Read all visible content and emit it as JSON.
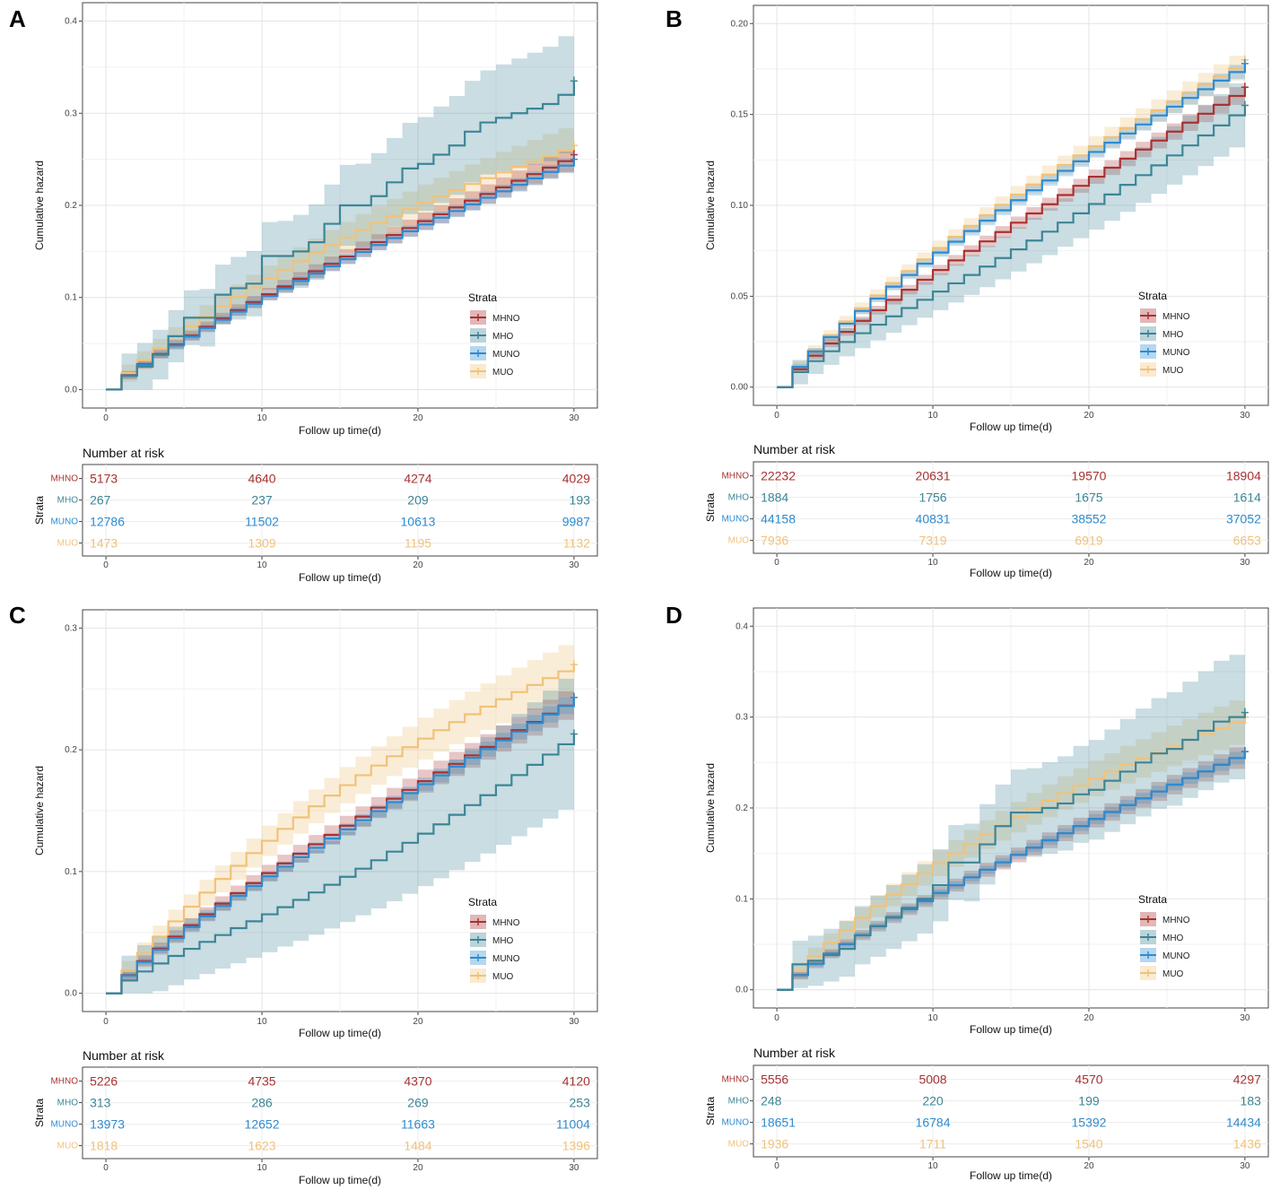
{
  "figure": {
    "colors": {
      "MHNO": "#a83232",
      "MHO": "#3d8596",
      "MUNO": "#2e8bd0",
      "MUO": "#f0c27a"
    },
    "strata_order": [
      "MHNO",
      "MHO",
      "MUNO",
      "MUO"
    ]
  },
  "chart_data": [
    {
      "panel": "A",
      "type": "line",
      "ylabel": "Cumulative hazard",
      "xlabel": "Follow up time(d)",
      "xlim": [
        -1.5,
        31.5
      ],
      "ylim": [
        -0.02,
        0.42
      ],
      "xticks": [
        "0",
        "10",
        "20",
        "30"
      ],
      "yticks": [
        "0.0",
        "0.1",
        "0.2",
        "0.3",
        "0.4"
      ],
      "ytick_values": [
        0,
        0.1,
        0.2,
        0.3,
        0.4
      ],
      "legend": {
        "title": "Strata",
        "entries": [
          "MHNO",
          "MHO",
          "MUNO",
          "MUO"
        ]
      },
      "series": [
        {
          "name": "MHNO",
          "final": 0.255,
          "ci": 0.012,
          "dip": 0.0
        },
        {
          "name": "MHO",
          "final": 0.335,
          "ci": 0.065,
          "dip": 0.01,
          "steps": [
            [
              1,
              0.015
            ],
            [
              2,
              0.025
            ],
            [
              3,
              0.038
            ],
            [
              4,
              0.058
            ],
            [
              5,
              0.078
            ],
            [
              6,
              0.078
            ],
            [
              7,
              0.103
            ],
            [
              8,
              0.11
            ],
            [
              9,
              0.115
            ],
            [
              10,
              0.145
            ],
            [
              11,
              0.145
            ],
            [
              12,
              0.15
            ],
            [
              13,
              0.16
            ],
            [
              14,
              0.18
            ],
            [
              15,
              0.2
            ],
            [
              16,
              0.2
            ],
            [
              17,
              0.21
            ],
            [
              18,
              0.225
            ],
            [
              19,
              0.24
            ],
            [
              20,
              0.245
            ],
            [
              21,
              0.255
            ],
            [
              22,
              0.265
            ],
            [
              23,
              0.28
            ],
            [
              24,
              0.29
            ],
            [
              25,
              0.295
            ],
            [
              26,
              0.3
            ],
            [
              27,
              0.305
            ],
            [
              28,
              0.31
            ],
            [
              29,
              0.32
            ],
            [
              30,
              0.335
            ]
          ]
        },
        {
          "name": "MUNO",
          "final": 0.25,
          "ci": 0.008,
          "dip": 0.0
        },
        {
          "name": "MUO",
          "final": 0.265,
          "ci": 0.025,
          "dip": -0.015
        }
      ],
      "risk_table": {
        "title": "Number at risk",
        "ylabel": "Strata",
        "xlabel": "Follow up time(d)",
        "times": [
          "0",
          "10",
          "20",
          "30"
        ],
        "rows": [
          {
            "stratum": "MHNO",
            "values": [
              "5173",
              "4640",
              "4274",
              "4029"
            ]
          },
          {
            "stratum": "MHO",
            "values": [
              "267",
              "237",
              "209",
              "193"
            ]
          },
          {
            "stratum": "MUNO",
            "values": [
              "12786",
              "11502",
              "10613",
              "9987"
            ]
          },
          {
            "stratum": "MUO",
            "values": [
              "1473",
              "1309",
              "1195",
              "1132"
            ]
          }
        ]
      }
    },
    {
      "panel": "B",
      "type": "line",
      "ylabel": "Cumulative hazard",
      "xlabel": "Follow up time(d)",
      "xlim": [
        -1.5,
        31.5
      ],
      "ylim": [
        -0.01,
        0.21
      ],
      "xticks": [
        "0",
        "10",
        "20",
        "30"
      ],
      "yticks": [
        "0.00",
        "0.05",
        "0.10",
        "0.15",
        "0.20"
      ],
      "ytick_values": [
        0,
        0.05,
        0.1,
        0.15,
        0.2
      ],
      "legend": {
        "title": "Strata",
        "entries": [
          "MHNO",
          "MHO",
          "MUNO",
          "MUO"
        ]
      },
      "series": [
        {
          "name": "MHNO",
          "final": 0.165,
          "ci": 0.005,
          "dip": 0.003
        },
        {
          "name": "MHO",
          "final": 0.155,
          "ci": 0.018,
          "dip": 0.012
        },
        {
          "name": "MUNO",
          "final": 0.178,
          "ci": 0.004,
          "dip": -0.002
        },
        {
          "name": "MUO",
          "final": 0.18,
          "ci": 0.007,
          "dip": -0.004
        }
      ],
      "risk_table": {
        "title": "Number at risk",
        "ylabel": "Strata",
        "xlabel": "Follow up time(d)",
        "times": [
          "0",
          "10",
          "20",
          "30"
        ],
        "rows": [
          {
            "stratum": "MHNO",
            "values": [
              "22232",
              "20631",
              "19570",
              "18904"
            ]
          },
          {
            "stratum": "MHO",
            "values": [
              "1884",
              "1756",
              "1675",
              "1614"
            ]
          },
          {
            "stratum": "MUNO",
            "values": [
              "44158",
              "40831",
              "38552",
              "37052"
            ]
          },
          {
            "stratum": "MUO",
            "values": [
              "7936",
              "7319",
              "6919",
              "6653"
            ]
          }
        ]
      }
    },
    {
      "panel": "C",
      "type": "line",
      "ylabel": "Cumulative hazard",
      "xlabel": "Follow up time(d)",
      "xlim": [
        -1.5,
        31.5
      ],
      "ylim": [
        -0.015,
        0.315
      ],
      "xticks": [
        "0",
        "10",
        "20",
        "30"
      ],
      "yticks": [
        "0.0",
        "0.1",
        "0.2",
        "0.3"
      ],
      "ytick_values": [
        0,
        0.1,
        0.2,
        0.3
      ],
      "legend": {
        "title": "Strata",
        "entries": [
          "MHNO",
          "MHO",
          "MUNO",
          "MUO"
        ]
      },
      "series": [
        {
          "name": "MHNO",
          "final": 0.243,
          "ci": 0.012,
          "dip": 0.0
        },
        {
          "name": "MHO",
          "final": 0.213,
          "ci": 0.055,
          "dip": 0.025
        },
        {
          "name": "MUNO",
          "final": 0.243,
          "ci": 0.007,
          "dip": 0.003
        },
        {
          "name": "MUO",
          "final": 0.27,
          "ci": 0.022,
          "dip": -0.018
        }
      ],
      "risk_table": {
        "title": "Number at risk",
        "ylabel": "Strata",
        "xlabel": "Follow up time(d)",
        "times": [
          "0",
          "10",
          "20",
          "30"
        ],
        "rows": [
          {
            "stratum": "MHNO",
            "values": [
              "5226",
              "4735",
              "4370",
              "4120"
            ]
          },
          {
            "stratum": "MHO",
            "values": [
              "313",
              "286",
              "269",
              "253"
            ]
          },
          {
            "stratum": "MUNO",
            "values": [
              "13973",
              "12652",
              "11663",
              "11004"
            ]
          },
          {
            "stratum": "MUO",
            "values": [
              "1818",
              "1623",
              "1484",
              "1396"
            ]
          }
        ]
      }
    },
    {
      "panel": "D",
      "type": "line",
      "ylabel": "Cumulative hazard",
      "xlabel": "Follow up time(d)",
      "xlim": [
        -1.5,
        31.5
      ],
      "ylim": [
        -0.02,
        0.42
      ],
      "xticks": [
        "0",
        "10",
        "20",
        "30"
      ],
      "yticks": [
        "0.0",
        "0.1",
        "0.2",
        "0.3",
        "0.4"
      ],
      "ytick_values": [
        0,
        0.1,
        0.2,
        0.3,
        0.4
      ],
      "legend": {
        "title": "Strata",
        "entries": [
          "MHNO",
          "MHO",
          "MUNO",
          "MUO"
        ]
      },
      "series": [
        {
          "name": "MHNO",
          "final": 0.262,
          "ci": 0.012,
          "dip": 0.0
        },
        {
          "name": "MHO",
          "final": 0.305,
          "ci": 0.07,
          "dip": -0.02,
          "steps": [
            [
              1,
              0.028
            ],
            [
              2,
              0.032
            ],
            [
              3,
              0.038
            ],
            [
              4,
              0.045
            ],
            [
              5,
              0.06
            ],
            [
              6,
              0.07
            ],
            [
              7,
              0.08
            ],
            [
              8,
              0.09
            ],
            [
              9,
              0.1
            ],
            [
              10,
              0.115
            ],
            [
              11,
              0.14
            ],
            [
              12,
              0.14
            ],
            [
              13,
              0.16
            ],
            [
              14,
              0.18
            ],
            [
              15,
              0.195
            ],
            [
              16,
              0.195
            ],
            [
              17,
              0.2
            ],
            [
              18,
              0.205
            ],
            [
              19,
              0.215
            ],
            [
              20,
              0.22
            ],
            [
              21,
              0.23
            ],
            [
              22,
              0.24
            ],
            [
              23,
              0.25
            ],
            [
              24,
              0.26
            ],
            [
              25,
              0.265
            ],
            [
              26,
              0.275
            ],
            [
              27,
              0.285
            ],
            [
              28,
              0.295
            ],
            [
              29,
              0.3
            ],
            [
              30,
              0.305
            ]
          ]
        },
        {
          "name": "MUNO",
          "final": 0.262,
          "ci": 0.007,
          "dip": 0.0
        },
        {
          "name": "MUO",
          "final": 0.3,
          "ci": 0.025,
          "dip": -0.02
        }
      ],
      "risk_table": {
        "title": "Number at risk",
        "ylabel": "Strata",
        "xlabel": "Follow up time(d)",
        "times": [
          "0",
          "10",
          "20",
          "30"
        ],
        "rows": [
          {
            "stratum": "MHNO",
            "values": [
              "5556",
              "5008",
              "4570",
              "4297"
            ]
          },
          {
            "stratum": "MHO",
            "values": [
              "248",
              "220",
              "199",
              "183"
            ]
          },
          {
            "stratum": "MUNO",
            "values": [
              "18651",
              "16784",
              "15392",
              "14434"
            ]
          },
          {
            "stratum": "MUO",
            "values": [
              "1936",
              "1711",
              "1540",
              "1436"
            ]
          }
        ]
      }
    }
  ]
}
